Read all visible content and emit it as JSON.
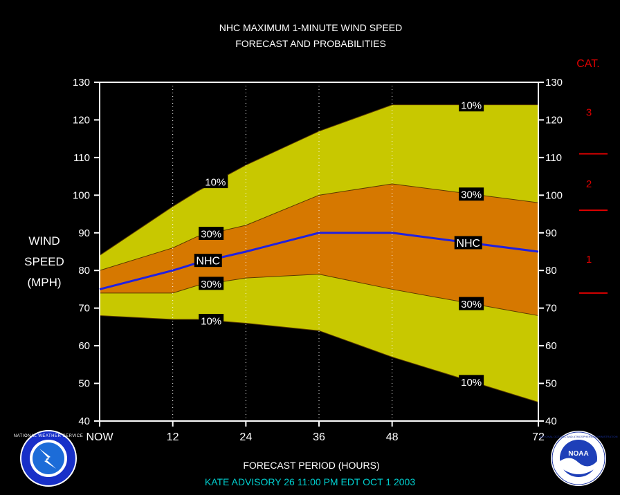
{
  "title_line1": "NHC MAXIMUM 1-MINUTE WIND SPEED",
  "title_line2": "FORECAST AND PROBABILITIES",
  "ylabel": [
    "WIND",
    "SPEED",
    "(MPH)"
  ],
  "xlabel": "FORECAST PERIOD (HOURS)",
  "footer": "KATE   ADVISORY  26  11:00  PM  EDT  OCT  1  2003",
  "category": {
    "title": "CAT.",
    "labels": [
      {
        "label": "3",
        "mph": 122
      },
      {
        "label": "2",
        "mph": 103
      },
      {
        "label": "1",
        "mph": 83
      }
    ],
    "thresholds": [
      111,
      96,
      74
    ],
    "color": "#e00000"
  },
  "logos": {
    "left": "NATIONAL WEATHER SERVICE",
    "right": "NOAA",
    "right_ring": "NATIONAL OCEANIC AND ATMOSPHERIC ADMINISTRATION"
  },
  "colors": {
    "outer_band": "#c8c800",
    "inner_band": "#d67800",
    "nhc_line": "#2020e0",
    "background": "#000000"
  },
  "chart_data": {
    "type": "area",
    "x": [
      0,
      12,
      16,
      24,
      36,
      48,
      72
    ],
    "x_ticks": [
      0,
      12,
      24,
      36,
      48,
      72
    ],
    "x_tick_labels": [
      "NOW",
      "12",
      "24",
      "36",
      "48",
      "72"
    ],
    "xlim": [
      0,
      72
    ],
    "ylim": [
      40,
      130
    ],
    "y_ticks": [
      40,
      50,
      60,
      70,
      80,
      90,
      100,
      110,
      120,
      130
    ],
    "series": [
      {
        "name": "10%",
        "values": [
          84,
          97,
          101,
          108,
          117,
          124,
          124
        ],
        "labels": [
          {
            "text": "10%",
            "x": 19
          },
          {
            "text": "10%",
            "x": 61
          }
        ]
      },
      {
        "name": "30%",
        "values": [
          80,
          86,
          89,
          92,
          100,
          103,
          98
        ],
        "labels": [
          {
            "text": "30%",
            "x": 18.3
          },
          {
            "text": "30%",
            "x": 61
          }
        ]
      },
      {
        "name": "NHC",
        "values": [
          75,
          80,
          82,
          85,
          90,
          90,
          85
        ],
        "labels": [
          {
            "text": "NHC",
            "x": 17.8
          },
          {
            "text": "NHC",
            "x": 60.5
          }
        ]
      },
      {
        "name": "30%",
        "values": [
          74,
          74,
          76,
          78,
          79,
          75,
          68
        ],
        "labels": [
          {
            "text": "30%",
            "x": 18.3
          },
          {
            "text": "30%",
            "x": 61
          }
        ]
      },
      {
        "name": "10%",
        "values": [
          68,
          67,
          67,
          66,
          64,
          57,
          45
        ],
        "labels": [
          {
            "text": "10%",
            "x": 18.3
          },
          {
            "text": "10%",
            "x": 61
          }
        ]
      }
    ]
  }
}
